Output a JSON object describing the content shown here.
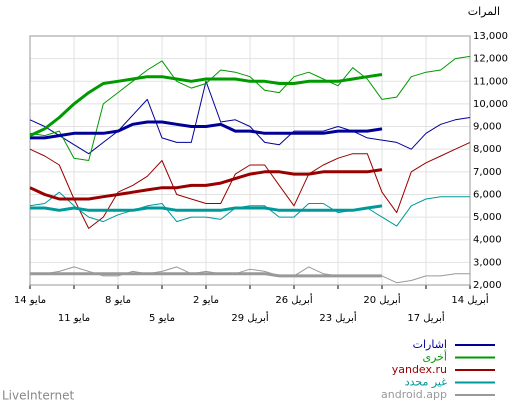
{
  "chart_data": {
    "type": "line",
    "title": "المرات",
    "footer": "LiveInternet",
    "categories": [
      "14 مايو",
      null,
      null,
      "11 مايو",
      null,
      null,
      "8 مايو",
      null,
      null,
      "5 مايو",
      null,
      null,
      "2 مايو",
      null,
      null,
      "29 أبريل",
      null,
      null,
      "26 أبريل",
      null,
      null,
      "23 أبريل",
      null,
      null,
      "20 أبريل",
      null,
      null,
      "17 أبريل",
      null,
      null,
      "14 أبريل"
    ],
    "ylim": [
      2000,
      13000
    ],
    "yticks": [
      {
        "value": 2000,
        "label": "2,000"
      },
      {
        "value": 3000,
        "label": "3,000"
      },
      {
        "value": 4000,
        "label": "4,000"
      },
      {
        "value": 5000,
        "label": "5,000"
      },
      {
        "value": 6000,
        "label": "6,000"
      },
      {
        "value": 7000,
        "label": "7,000"
      },
      {
        "value": 8000,
        "label": "8,000"
      },
      {
        "value": 9000,
        "label": "9,000"
      },
      {
        "value": 10000,
        "label": "10,000"
      },
      {
        "value": 11000,
        "label": "11,000"
      },
      {
        "value": 12000,
        "label": "12,000"
      },
      {
        "value": 13000,
        "label": "13,000"
      }
    ],
    "grid": true,
    "legend": "bottom-right",
    "series": [
      {
        "name": "اشارات",
        "color": "#000099",
        "values": [
          9300,
          9000,
          8600,
          8200,
          7800,
          8300,
          8800,
          9500,
          10200,
          8500,
          8300,
          8300,
          11000,
          9200,
          9300,
          9000,
          8300,
          8200,
          8800,
          8800,
          8800,
          9000,
          8800,
          8500,
          8400,
          8300,
          8000,
          8700,
          9100,
          9300,
          9400
        ],
        "trend": [
          8500,
          8500,
          8600,
          8700,
          8700,
          8700,
          8800,
          9100,
          9200,
          9200,
          9100,
          9000,
          9000,
          9100,
          8800,
          8800,
          8700,
          8700,
          8700,
          8700,
          8700,
          8800,
          8800,
          8800,
          8900,
          null,
          null,
          null,
          null,
          null,
          null
        ]
      },
      {
        "name": "أخرى",
        "color": "#009900",
        "values": [
          8700,
          8600,
          8800,
          7600,
          7500,
          10000,
          10500,
          11000,
          11500,
          11900,
          11000,
          10700,
          10900,
          11500,
          11400,
          11200,
          10600,
          10500,
          11200,
          11400,
          11100,
          10800,
          11600,
          11100,
          10200,
          10300,
          11200,
          11400,
          11500,
          12000,
          12100
        ],
        "trend": [
          8600,
          8900,
          9400,
          10000,
          10500,
          10900,
          11000,
          11100,
          11200,
          11200,
          11100,
          11000,
          11100,
          11100,
          11100,
          11000,
          11000,
          10900,
          10900,
          11000,
          11000,
          11000,
          11100,
          11200,
          11300,
          null,
          null,
          null,
          null,
          null,
          null
        ]
      },
      {
        "name": "yandex.ru",
        "color": "#990000",
        "values": [
          8000,
          7700,
          7300,
          5800,
          4500,
          5000,
          6100,
          6400,
          6800,
          7500,
          6000,
          5800,
          5600,
          5600,
          6900,
          7300,
          7300,
          6400,
          5500,
          6900,
          7300,
          7600,
          7800,
          7800,
          6100,
          5200,
          7000,
          7400,
          7700,
          8000,
          8300
        ],
        "trend": [
          6300,
          6000,
          5800,
          5800,
          5800,
          5900,
          6000,
          6100,
          6200,
          6300,
          6300,
          6400,
          6400,
          6500,
          6700,
          6900,
          7000,
          7000,
          6900,
          6900,
          7000,
          7000,
          7000,
          7000,
          7100,
          null,
          null,
          null,
          null,
          null,
          null
        ]
      },
      {
        "name": "غير محدد",
        "color": "#009999",
        "values": [
          5500,
          5600,
          6100,
          5500,
          5000,
          4800,
          5100,
          5300,
          5500,
          5600,
          4800,
          5000,
          5000,
          4900,
          5400,
          5500,
          5500,
          5000,
          5000,
          5600,
          5600,
          5200,
          5300,
          5400,
          5000,
          4600,
          5500,
          5800,
          5900,
          5900,
          5900
        ],
        "trend": [
          5400,
          5400,
          5300,
          5400,
          5300,
          5300,
          5300,
          5300,
          5400,
          5400,
          5300,
          5300,
          5300,
          5300,
          5400,
          5400,
          5400,
          5300,
          5300,
          5300,
          5300,
          5300,
          5300,
          5400,
          5500,
          null,
          null,
          null,
          null,
          null,
          null
        ]
      },
      {
        "name": "android.app",
        "color": "#999999",
        "values": [
          2500,
          2500,
          2600,
          2800,
          2600,
          2400,
          2400,
          2600,
          2500,
          2600,
          2800,
          2500,
          2600,
          2500,
          2500,
          2700,
          2600,
          2400,
          2400,
          2800,
          2500,
          2400,
          2400,
          2400,
          2400,
          2100,
          2200,
          2400,
          2400,
          2500,
          2500
        ],
        "trend": [
          2500,
          2500,
          2500,
          2500,
          2500,
          2500,
          2500,
          2500,
          2500,
          2500,
          2500,
          2500,
          2500,
          2500,
          2500,
          2500,
          2500,
          2400,
          2400,
          2400,
          2400,
          2400,
          2400,
          2400,
          2400,
          null,
          null,
          null,
          null,
          null,
          null
        ]
      }
    ]
  }
}
